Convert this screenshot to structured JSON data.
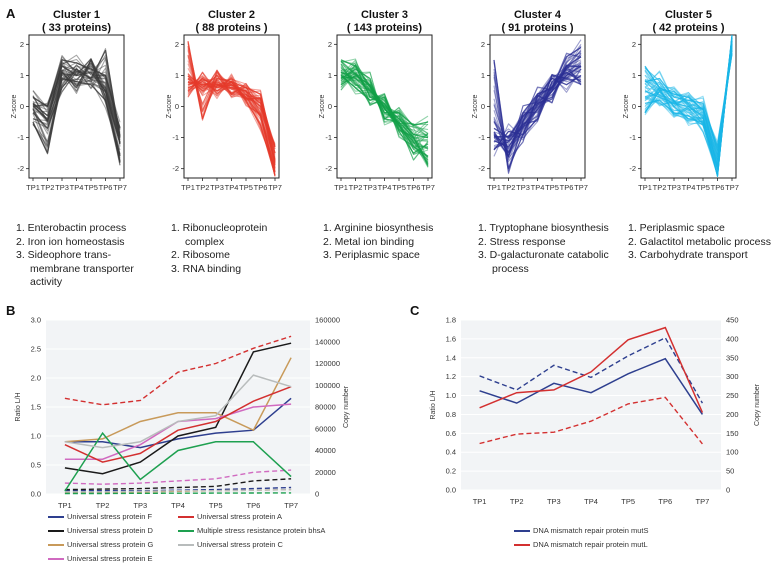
{
  "panel_labels": {
    "a": "A",
    "b": "B",
    "c": "C"
  },
  "chart_data": [
    {
      "type": "line",
      "panel": "A",
      "title": "Cluster 1",
      "subtitle": "( 33 proteins)",
      "ylabel": "Z-score",
      "categories": [
        "TP1",
        "TP2",
        "TP3",
        "TP4",
        "TP5",
        "TP6",
        "TP7"
      ],
      "ylim": [
        -2.3,
        2.3
      ],
      "yticks": [
        -2,
        -1,
        0,
        1,
        2
      ],
      "color": "#3a3a3a",
      "line_count": 33,
      "representative_series": [
        {
          "name": "profile-1",
          "values": [
            0.1,
            -0.3,
            1.3,
            1.0,
            1.1,
            0.5,
            -1.2
          ]
        },
        {
          "name": "profile-2",
          "values": [
            -0.5,
            -1.5,
            0.9,
            0.8,
            0.7,
            0.2,
            -1.6
          ]
        },
        {
          "name": "profile-3",
          "values": [
            0.3,
            0.0,
            1.5,
            1.4,
            1.2,
            1.0,
            -0.7
          ]
        },
        {
          "name": "profile-4",
          "values": [
            -0.2,
            -0.7,
            0.6,
            1.2,
            0.9,
            1.8,
            -1.0
          ]
        },
        {
          "name": "profile-5",
          "values": [
            0.0,
            -0.4,
            1.1,
            0.6,
            1.5,
            0.3,
            -1.8
          ]
        }
      ],
      "annotation": [
        "1. Enterobactin process",
        "2. Iron ion homeostasis",
        "3. Sideophore trans-",
        "membrane transporter",
        "activity"
      ]
    },
    {
      "type": "line",
      "panel": "A",
      "title": "Cluster 2",
      "subtitle": "( 88 proteins )",
      "ylabel": "Z-score",
      "categories": [
        "TP1",
        "TP2",
        "TP3",
        "TP4",
        "TP5",
        "TP6",
        "TP7"
      ],
      "ylim": [
        -2.3,
        2.3
      ],
      "yticks": [
        -2,
        -1,
        0,
        1,
        2
      ],
      "color": "#e53a2a",
      "line_count": 88,
      "representative_series": [
        {
          "name": "profile-1",
          "values": [
            0.8,
            0.7,
            0.7,
            0.6,
            0.5,
            0.1,
            -1.8
          ]
        },
        {
          "name": "profile-2",
          "values": [
            2.1,
            -0.4,
            0.9,
            0.8,
            0.6,
            0.4,
            -1.5
          ]
        },
        {
          "name": "profile-3",
          "values": [
            0.5,
            0.9,
            0.6,
            0.7,
            0.3,
            -0.3,
            -2.1
          ]
        },
        {
          "name": "profile-4",
          "values": [
            0.9,
            0.6,
            1.0,
            0.4,
            0.4,
            0.0,
            -1.3
          ]
        },
        {
          "name": "profile-5",
          "values": [
            0.6,
            0.8,
            0.5,
            0.8,
            0.2,
            -0.6,
            -2.2
          ]
        }
      ],
      "annotation": [
        "1. Ribonucleoprotein",
        "complex",
        "2. Ribosome",
        "3. RNA binding"
      ]
    },
    {
      "type": "line",
      "panel": "A",
      "title": "Cluster 3",
      "subtitle": "( 143 proteins)",
      "ylabel": "Z-score",
      "categories": [
        "TP1",
        "TP2",
        "TP3",
        "TP4",
        "TP5",
        "TP6",
        "TP7"
      ],
      "ylim": [
        -2.3,
        2.3
      ],
      "yticks": [
        -2,
        -1,
        0,
        1,
        2
      ],
      "color": "#12a048",
      "line_count": 143,
      "representative_series": [
        {
          "name": "profile-1",
          "values": [
            1.1,
            0.9,
            0.5,
            0.0,
            -0.4,
            -0.9,
            -1.0
          ]
        },
        {
          "name": "profile-2",
          "values": [
            1.5,
            1.3,
            0.3,
            0.1,
            -0.6,
            -1.3,
            -1.6
          ]
        },
        {
          "name": "profile-3",
          "values": [
            0.7,
            1.0,
            0.7,
            -0.2,
            -0.2,
            -0.6,
            -0.5
          ]
        },
        {
          "name": "profile-4",
          "values": [
            1.0,
            0.6,
            0.2,
            0.3,
            -0.8,
            -1.5,
            -1.2
          ]
        },
        {
          "name": "profile-5",
          "values": [
            0.9,
            1.2,
            0.9,
            -0.4,
            -0.5,
            -1.0,
            -1.9
          ]
        }
      ],
      "annotation": [
        "1. Arginine biosynthesis",
        "2. Metal ion binding",
        "3. Periplasmic space"
      ]
    },
    {
      "type": "line",
      "panel": "A",
      "title": "Cluster 4",
      "subtitle": "( 91 proteins )",
      "ylabel": "Z-score",
      "categories": [
        "TP1",
        "TP2",
        "TP3",
        "TP4",
        "TP5",
        "TP6",
        "TP7"
      ],
      "ylim": [
        -2.3,
        2.3
      ],
      "yticks": [
        -2,
        -1,
        0,
        1,
        2
      ],
      "color": "#2b2f94",
      "line_count": 91,
      "representative_series": [
        {
          "name": "profile-1",
          "values": [
            -1.1,
            -1.3,
            -0.6,
            -0.1,
            0.5,
            1.0,
            1.3
          ]
        },
        {
          "name": "profile-2",
          "values": [
            1.5,
            -2.0,
            -0.9,
            0.3,
            0.9,
            0.7,
            1.0
          ]
        },
        {
          "name": "profile-3",
          "values": [
            -0.7,
            -1.0,
            -0.3,
            0.1,
            0.3,
            1.3,
            1.6
          ]
        },
        {
          "name": "profile-4",
          "values": [
            -1.4,
            -0.8,
            -0.9,
            -0.4,
            0.8,
            1.1,
            0.8
          ]
        },
        {
          "name": "profile-5",
          "values": [
            -0.9,
            -1.6,
            -0.2,
            0.4,
            0.6,
            1.6,
            1.9
          ]
        }
      ],
      "annotation": [
        "1. Tryptophane biosynthesis",
        "2. Stress response",
        "3. D-galacturonate catabolic",
        "process"
      ]
    },
    {
      "type": "line",
      "panel": "A",
      "title": "Cluster 5",
      "subtitle": "( 42 proteins )",
      "ylabel": "Z-score",
      "categories": [
        "TP1",
        "TP2",
        "TP3",
        "TP4",
        "TP5",
        "TP6",
        "TP7"
      ],
      "ylim": [
        -2.3,
        2.3
      ],
      "yticks": [
        -2,
        -1,
        0,
        1,
        2
      ],
      "color": "#19b5e6",
      "line_count": 42,
      "representative_series": [
        {
          "name": "profile-1",
          "values": [
            0.5,
            0.3,
            0.1,
            0.0,
            -0.3,
            -1.9,
            2.2
          ]
        },
        {
          "name": "profile-2",
          "values": [
            1.3,
            0.6,
            0.4,
            0.3,
            -0.1,
            -1.6,
            2.0
          ]
        },
        {
          "name": "profile-3",
          "values": [
            0.1,
            0.2,
            -0.2,
            -0.3,
            -0.6,
            -2.2,
            2.3
          ]
        },
        {
          "name": "profile-4",
          "values": [
            0.8,
            0.9,
            0.3,
            0.2,
            0.1,
            -1.3,
            1.8
          ]
        },
        {
          "name": "profile-5",
          "values": [
            -0.2,
            0.5,
            0.0,
            -0.4,
            -0.5,
            -2.0,
            2.1
          ]
        }
      ],
      "annotation": [
        "1. Periplasmic space",
        "2. Galactitol metabolic process",
        "3. Carbohydrate transport"
      ]
    },
    {
      "type": "line",
      "panel": "B",
      "title": "",
      "ylabel": "Ratio L/H",
      "y2label": "Copy number",
      "categories": [
        "TP1",
        "TP2",
        "TP3",
        "TP4",
        "TP5",
        "TP6",
        "TP7"
      ],
      "ylim": [
        0,
        3.0
      ],
      "yticks": [
        0,
        0.5,
        1.0,
        1.5,
        2.0,
        2.5,
        3.0
      ],
      "y2lim": [
        0,
        160000
      ],
      "y2ticks": [
        0,
        20000,
        40000,
        60000,
        80000,
        100000,
        120000,
        140000,
        160000
      ],
      "series": [
        {
          "name": "Universal stress protein F",
          "color": "#2e3f8f",
          "values": [
            0.9,
            0.9,
            0.8,
            0.95,
            1.05,
            1.1,
            1.65
          ],
          "copy": [
            3000,
            3000,
            3000,
            3500,
            4000,
            5000,
            6000
          ]
        },
        {
          "name": "Universal stress protein D",
          "color": "#1a1a1a",
          "values": [
            0.45,
            0.35,
            0.55,
            1.0,
            1.15,
            2.45,
            2.6
          ],
          "copy": [
            4000,
            4500,
            5000,
            6000,
            7000,
            12000,
            14000
          ]
        },
        {
          "name": "Universal stress protein G",
          "color": "#c89a5a",
          "values": [
            0.9,
            0.95,
            1.25,
            1.4,
            1.4,
            1.1,
            2.35
          ],
          "copy": [
            1000,
            1500,
            2000,
            2500,
            3000,
            3500,
            4000
          ]
        },
        {
          "name": "Universal stress protein E",
          "color": "#d06ac0",
          "values": [
            0.6,
            0.6,
            0.85,
            1.25,
            1.3,
            1.5,
            1.55
          ],
          "copy": [
            10000,
            9000,
            10000,
            12000,
            14000,
            20000,
            22000
          ]
        },
        {
          "name": "Universal stress protein A",
          "color": "#d33030",
          "values": [
            0.85,
            0.55,
            0.7,
            1.1,
            1.25,
            1.6,
            1.85
          ],
          "copy": [
            88000,
            82000,
            86000,
            112000,
            120000,
            134000,
            145000
          ]
        },
        {
          "name": "Multiple stress resistance protein bhsA",
          "color": "#1ea050",
          "values": [
            0.05,
            1.05,
            0.25,
            0.75,
            0.9,
            0.9,
            0.3
          ],
          "copy": [
            500,
            500,
            600,
            700,
            800,
            900,
            1000
          ]
        },
        {
          "name": "Universal stress protein C",
          "color": "#b8bcbc",
          "values": [
            0.9,
            0.8,
            0.9,
            1.25,
            1.35,
            2.05,
            1.85
          ],
          "copy": [
            2000,
            2000,
            2500,
            3000,
            3000,
            3500,
            4000
          ]
        }
      ]
    },
    {
      "type": "line",
      "panel": "C",
      "title": "",
      "ylabel": "Ratio L/H",
      "y2label": "Copy number",
      "categories": [
        "TP1",
        "TP2",
        "TP3",
        "TP4",
        "TP5",
        "TP6",
        "TP7"
      ],
      "ylim": [
        0,
        1.8
      ],
      "yticks": [
        0,
        0.2,
        0.4,
        0.6,
        0.8,
        1.0,
        1.2,
        1.4,
        1.6,
        1.8
      ],
      "y2lim": [
        0,
        450
      ],
      "y2ticks": [
        0,
        50,
        100,
        150,
        200,
        250,
        300,
        350,
        400,
        450
      ],
      "series": [
        {
          "name": "DNA mismatch repair protein mutS",
          "color": "#2e3f8f",
          "values": [
            1.05,
            0.92,
            1.13,
            1.03,
            1.23,
            1.39,
            0.8
          ],
          "copy": [
            302,
            265,
            330,
            298,
            355,
            403,
            230
          ]
        },
        {
          "name": "DNA mismatch repair protein mutL",
          "color": "#d33030",
          "values": [
            0.87,
            1.03,
            1.06,
            1.25,
            1.59,
            1.72,
            0.82
          ],
          "copy": [
            123,
            148,
            153,
            182,
            228,
            245,
            122
          ]
        }
      ]
    }
  ]
}
